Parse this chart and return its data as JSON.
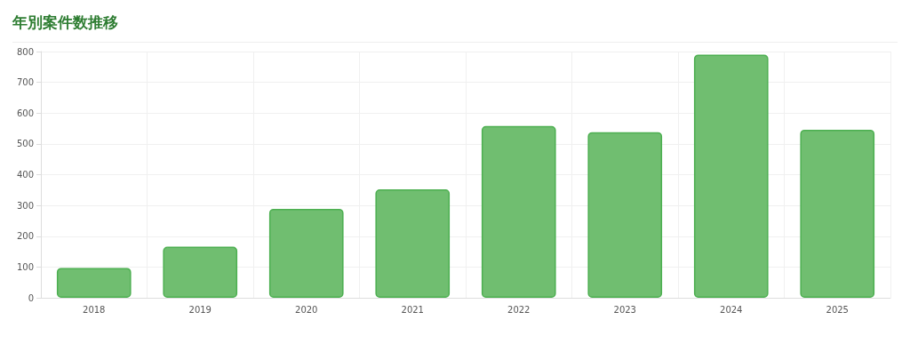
{
  "chart_data": {
    "type": "bar",
    "title": "年別案件数推移",
    "categories": [
      "2018",
      "2019",
      "2020",
      "2021",
      "2022",
      "2023",
      "2024",
      "2025"
    ],
    "values": [
      97,
      166,
      289,
      352,
      558,
      538,
      790,
      546
    ],
    "color": "#70be70",
    "ylim": [
      0,
      800
    ],
    "yticks": [
      0,
      100,
      200,
      300,
      400,
      500,
      600,
      700,
      800
    ],
    "grid": true
  }
}
